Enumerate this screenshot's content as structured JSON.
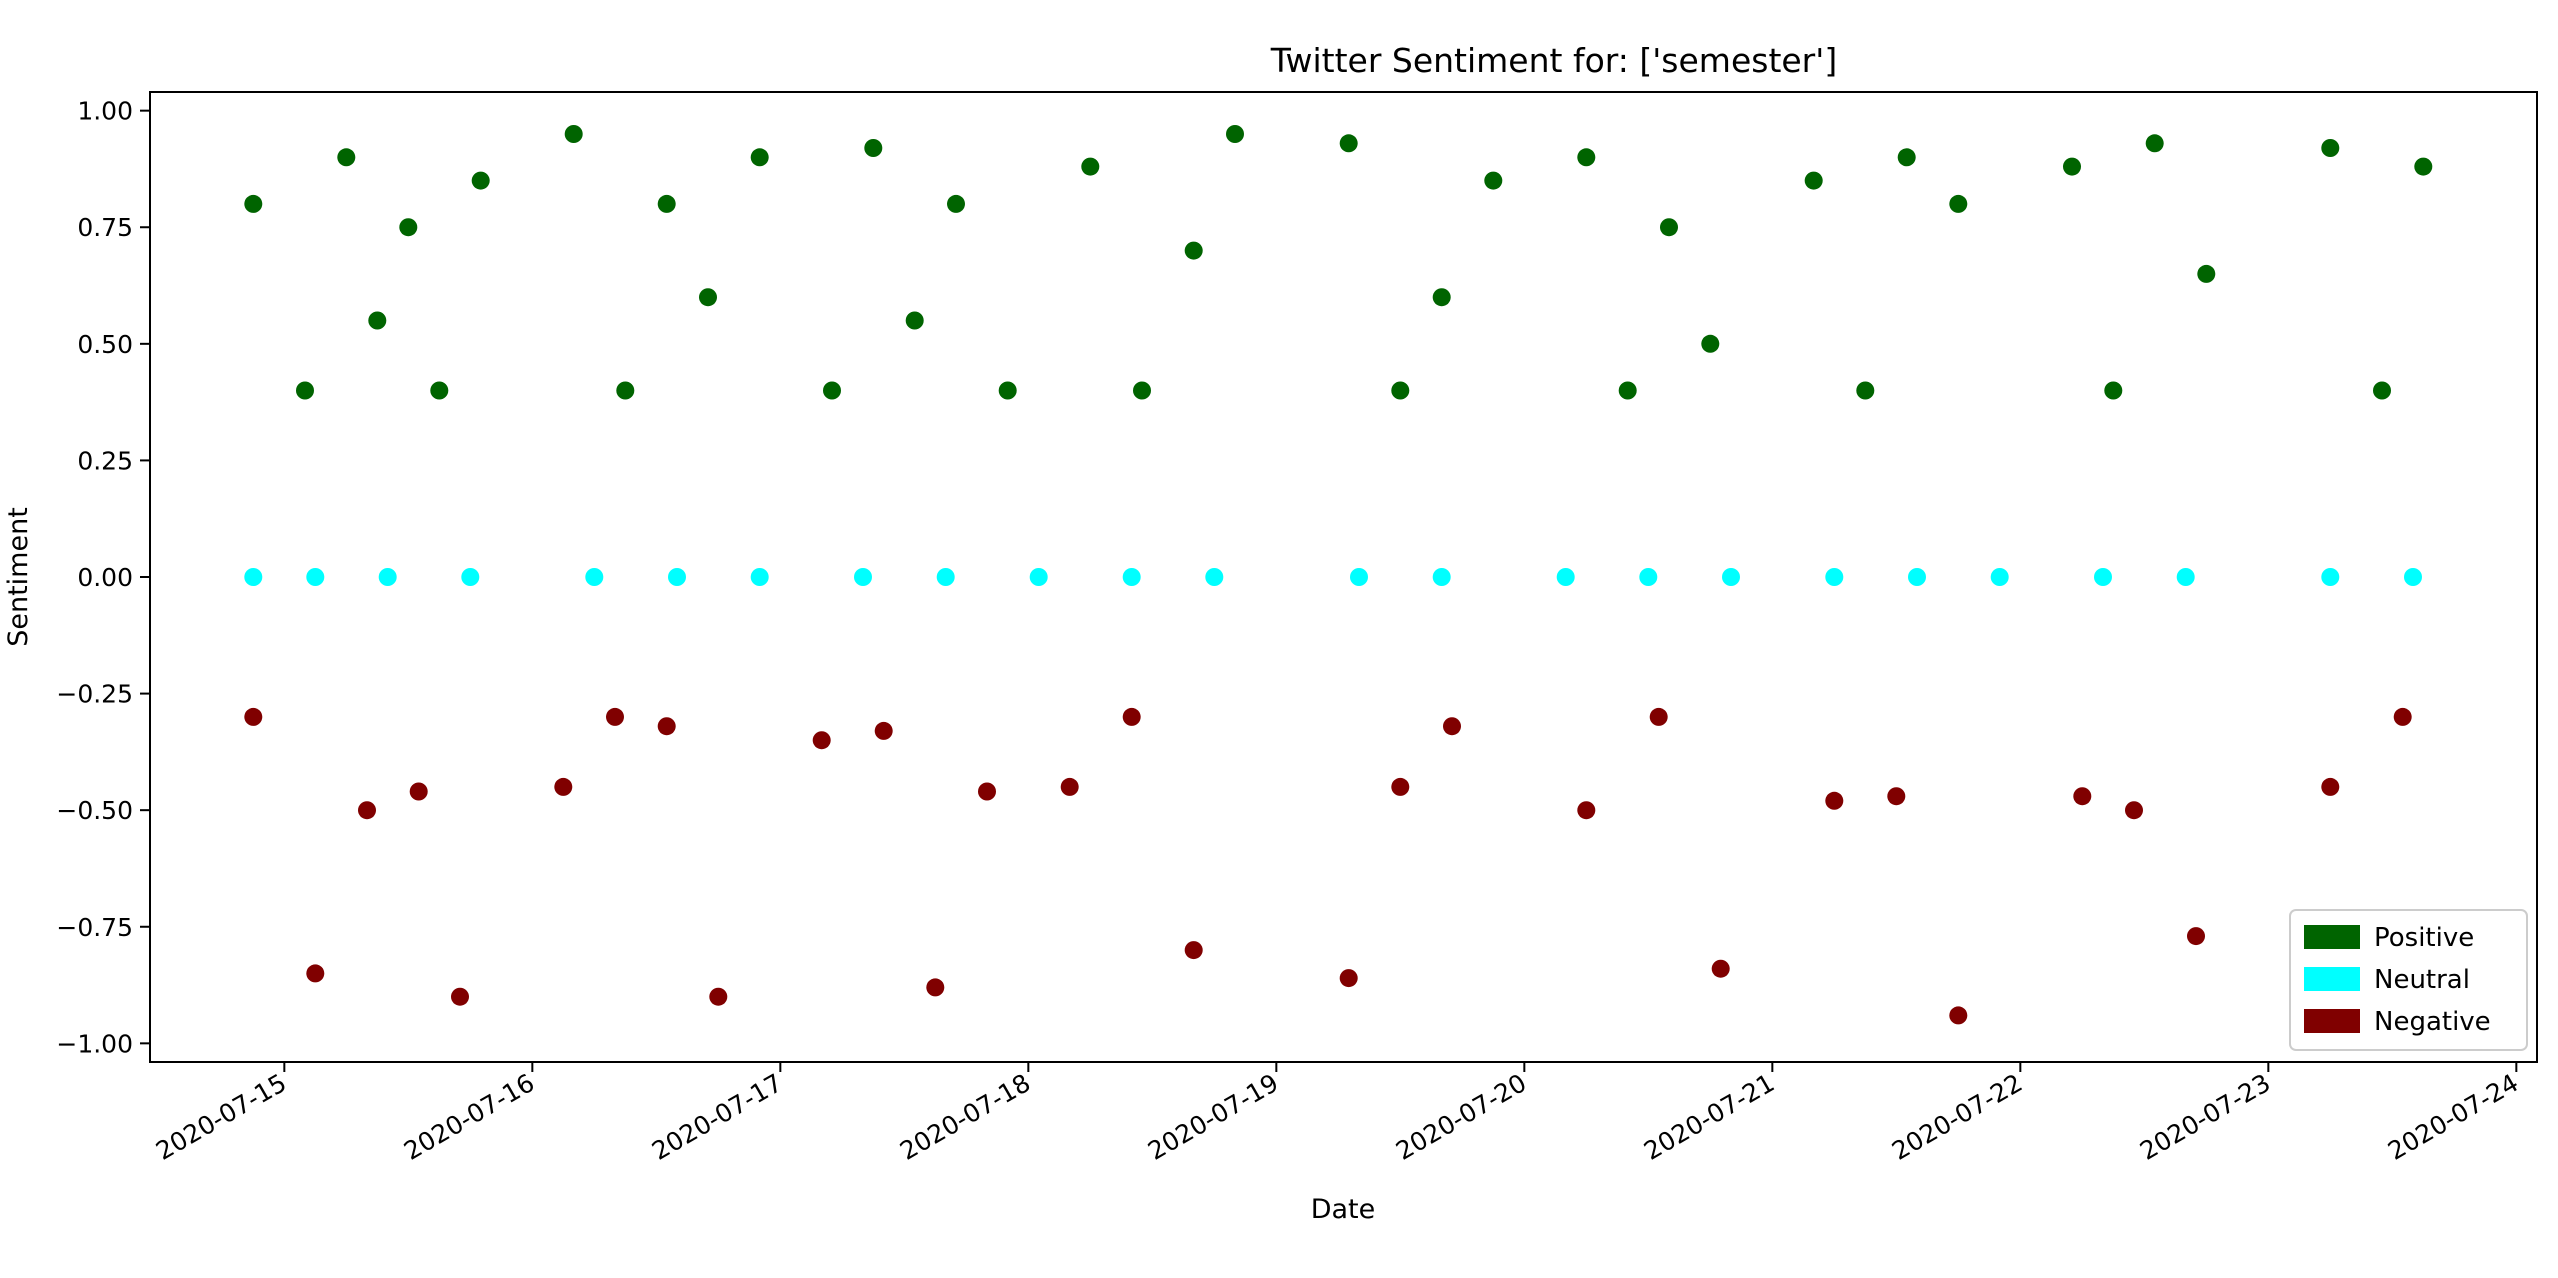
{
  "chart_data": {
    "type": "scatter",
    "title": "Twitter Sentiment for: ['semester']",
    "xlabel": "Date",
    "ylabel": "Sentiment",
    "x_ticks": [
      "2020-07-15",
      "2020-07-16",
      "2020-07-17",
      "2020-07-18",
      "2020-07-19",
      "2020-07-20",
      "2020-07-21",
      "2020-07-22",
      "2020-07-23",
      "2020-07-24"
    ],
    "xlim": [
      "2020-07-14T11:00",
      "2020-07-24T02:00"
    ],
    "y_ticks": [
      "1.00",
      "0.75",
      "0.50",
      "0.25",
      "0.00",
      "−0.25",
      "−0.50",
      "−0.75",
      "−1.00"
    ],
    "y_tick_values": [
      1.0,
      0.75,
      0.5,
      0.25,
      0.0,
      -0.25,
      -0.5,
      -0.75,
      -1.0
    ],
    "ylim": [
      -1.04,
      1.04
    ],
    "grid": false,
    "legend_position": "lower-right",
    "series": [
      {
        "name": "Positive",
        "color": "#006400",
        "x": [
          "2020-07-14T21:00",
          "2020-07-15T02:00",
          "2020-07-15T06:00",
          "2020-07-15T09:00",
          "2020-07-15T12:00",
          "2020-07-15T15:00",
          "2020-07-15T19:00",
          "2020-07-16T04:00",
          "2020-07-16T09:00",
          "2020-07-16T13:00",
          "2020-07-16T17:00",
          "2020-07-16T22:00",
          "2020-07-17T05:00",
          "2020-07-17T09:00",
          "2020-07-17T13:00",
          "2020-07-17T17:00",
          "2020-07-17T22:00",
          "2020-07-18T06:00",
          "2020-07-18T11:00",
          "2020-07-18T16:00",
          "2020-07-18T20:00",
          "2020-07-19T07:00",
          "2020-07-19T12:00",
          "2020-07-19T16:00",
          "2020-07-19T21:00",
          "2020-07-20T06:00",
          "2020-07-20T10:00",
          "2020-07-20T14:00",
          "2020-07-20T18:00",
          "2020-07-21T04:00",
          "2020-07-21T09:00",
          "2020-07-21T13:00",
          "2020-07-21T18:00",
          "2020-07-22T05:00",
          "2020-07-22T09:00",
          "2020-07-22T13:00",
          "2020-07-22T18:00",
          "2020-07-23T06:00",
          "2020-07-23T11:00",
          "2020-07-23T15:00"
        ],
        "y": [
          0.8,
          0.4,
          0.9,
          0.55,
          0.75,
          0.4,
          0.85,
          0.95,
          0.4,
          0.8,
          0.6,
          0.9,
          0.4,
          0.92,
          0.55,
          0.8,
          0.4,
          0.88,
          0.4,
          0.7,
          0.95,
          0.93,
          0.4,
          0.6,
          0.85,
          0.9,
          0.4,
          0.75,
          0.5,
          0.85,
          0.4,
          0.9,
          0.8,
          0.88,
          0.4,
          0.93,
          0.65,
          0.92,
          0.4,
          0.88
        ]
      },
      {
        "name": "Neutral",
        "color": "#00FFFF",
        "x": [
          "2020-07-14T21:00",
          "2020-07-15T03:00",
          "2020-07-15T10:00",
          "2020-07-15T18:00",
          "2020-07-16T06:00",
          "2020-07-16T14:00",
          "2020-07-16T22:00",
          "2020-07-17T08:00",
          "2020-07-17T16:00",
          "2020-07-18T01:00",
          "2020-07-18T10:00",
          "2020-07-18T18:00",
          "2020-07-19T08:00",
          "2020-07-19T16:00",
          "2020-07-20T04:00",
          "2020-07-20T12:00",
          "2020-07-20T20:00",
          "2020-07-21T06:00",
          "2020-07-21T14:00",
          "2020-07-21T22:00",
          "2020-07-22T08:00",
          "2020-07-22T16:00",
          "2020-07-23T06:00",
          "2020-07-23T14:00"
        ],
        "y": [
          0,
          0,
          0,
          0,
          0,
          0,
          0,
          0,
          0,
          0,
          0,
          0,
          0,
          0,
          0,
          0,
          0,
          0,
          0,
          0,
          0,
          0,
          0,
          0
        ]
      },
      {
        "name": "Negative",
        "color": "#800000",
        "x": [
          "2020-07-14T21:00",
          "2020-07-15T03:00",
          "2020-07-15T08:00",
          "2020-07-15T13:00",
          "2020-07-15T17:00",
          "2020-07-16T03:00",
          "2020-07-16T08:00",
          "2020-07-16T13:00",
          "2020-07-16T18:00",
          "2020-07-17T04:00",
          "2020-07-17T10:00",
          "2020-07-17T15:00",
          "2020-07-17T20:00",
          "2020-07-18T04:00",
          "2020-07-18T10:00",
          "2020-07-18T16:00",
          "2020-07-19T07:00",
          "2020-07-19T12:00",
          "2020-07-19T17:00",
          "2020-07-20T06:00",
          "2020-07-20T13:00",
          "2020-07-20T19:00",
          "2020-07-21T06:00",
          "2020-07-21T12:00",
          "2020-07-21T18:00",
          "2020-07-22T06:00",
          "2020-07-22T11:00",
          "2020-07-22T17:00",
          "2020-07-23T06:00",
          "2020-07-23T13:00"
        ],
        "y": [
          -0.3,
          -0.85,
          -0.5,
          -0.46,
          -0.9,
          -0.45,
          -0.3,
          -0.32,
          -0.9,
          -0.35,
          -0.33,
          -0.88,
          -0.46,
          -0.45,
          -0.3,
          -0.8,
          -0.86,
          -0.45,
          -0.32,
          -0.5,
          -0.3,
          -0.84,
          -0.48,
          -0.47,
          -0.94,
          -0.47,
          -0.5,
          -0.77,
          -0.45,
          -0.3
        ]
      }
    ]
  }
}
